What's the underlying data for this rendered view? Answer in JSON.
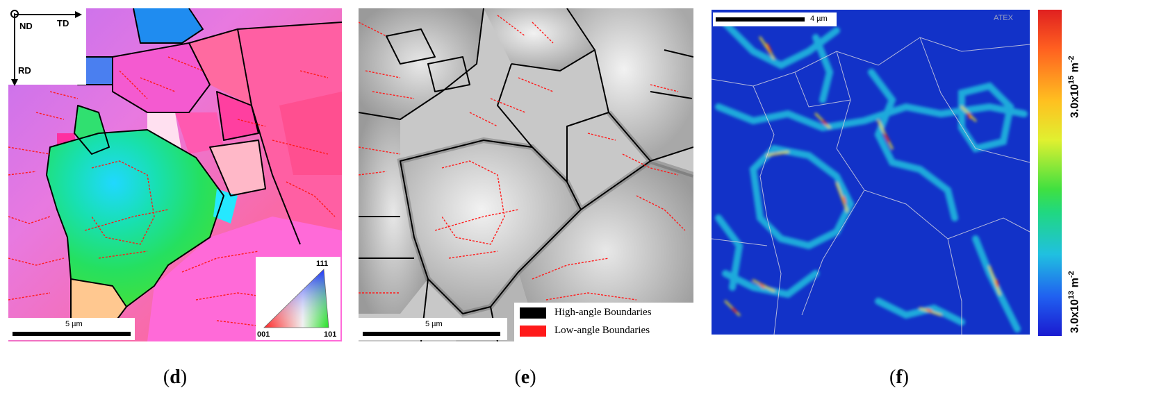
{
  "panels": {
    "d": {
      "caption_letter": "d",
      "axes": {
        "normal": "ND",
        "transverse": "TD",
        "rolling": "RD"
      },
      "scale_label": "5 µm",
      "ipf": {
        "top": "111",
        "left": "001",
        "right": "101"
      }
    },
    "e": {
      "caption_letter": "e",
      "scale_label": "5 µm",
      "legend": [
        {
          "label": "High-angle Boundaries",
          "color": "#000000"
        },
        {
          "label": "Low-angle Boundaries",
          "color": "#ff0000"
        }
      ]
    },
    "f": {
      "caption_letter": "f",
      "scale_label": "4 µm",
      "watermark": "ATEX",
      "colorbar": {
        "max_label": "3.0x10",
        "max_exp": "15",
        "min_label": "3.0x10",
        "min_exp": "13",
        "unit": "m",
        "unit_exp": "-2"
      }
    }
  },
  "colors": {
    "hagb": "#000000",
    "lagb": "#ff0000",
    "ipf_red": "#ff3a66",
    "ipf_green": "#1fe060",
    "ipf_blue": "#3060ff",
    "dislocation_low": "#1030c8",
    "dislocation_high": "#ff2000"
  }
}
